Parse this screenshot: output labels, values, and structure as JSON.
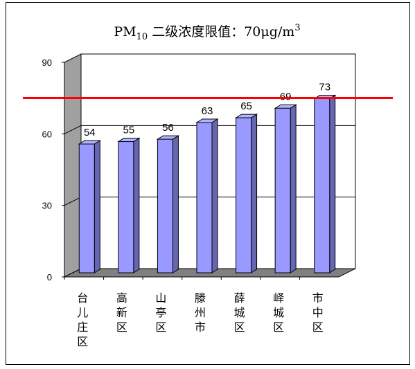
{
  "chart_data": {
    "type": "bar",
    "title": "PM10 二级浓度限值：70μg/m3",
    "title_parts": {
      "prefix": "PM",
      "subscript": "10",
      "middle": "  二级浓度限值：70μg/m",
      "superscript": "3"
    },
    "categories": [
      "台儿庄区",
      "高新区",
      "山亭区",
      "滕州市",
      "薛城区",
      "峄城区",
      "市中区"
    ],
    "values": [
      54,
      55,
      56,
      63,
      65,
      69,
      73
    ],
    "ylim": [
      0,
      90
    ],
    "yticks": [
      "0",
      "30",
      "60",
      "90"
    ],
    "reference_line": {
      "value": 73,
      "color": "#ff0000"
    },
    "grid": true,
    "bar_style": "3d",
    "colors": {
      "bar_front": "#9999ff",
      "bar_side": "#6666b3",
      "bar_top": "#b3b3ff",
      "back_wall_side": "#a0a0a0",
      "floor": "#808080",
      "gridline": "#000000"
    }
  }
}
